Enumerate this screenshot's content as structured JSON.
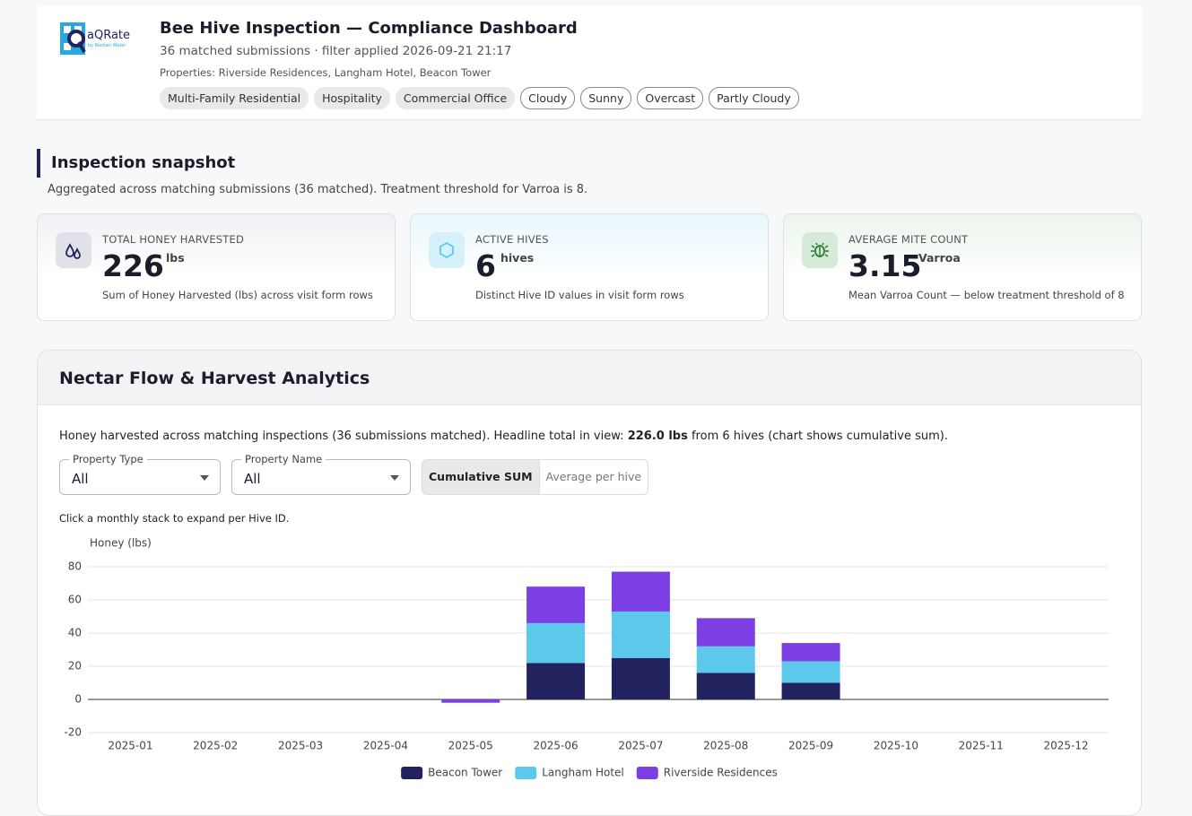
{
  "header": {
    "logo_text": "aQRate",
    "logo_sub": "by Roshan Water",
    "title": "Bee Hive Inspection — Compliance Dashboard",
    "subtitle": "36 matched submissions · filter applied 2026-09-21 21:17",
    "properties": "Properties: Riverside Residences, Langham Hotel, Beacon Tower",
    "type_tags": [
      "Multi-Family Residential",
      "Hospitality",
      "Commercial Office"
    ],
    "weather_tags": [
      "Cloudy",
      "Sunny",
      "Overcast",
      "Partly Cloudy"
    ]
  },
  "snapshot": {
    "title": "Inspection snapshot",
    "description": "Aggregated across matching submissions (36 matched). Treatment threshold for Varroa is 8.",
    "cards": [
      {
        "label": "TOTAL HONEY HARVESTED",
        "value": "226",
        "unit": "lbs",
        "note": "Sum of Honey Harvested (lbs) across visit form rows"
      },
      {
        "label": "ACTIVE HIVES",
        "value": "6",
        "unit": "hives",
        "note": "Distinct Hive ID values in visit form rows"
      },
      {
        "label": "AVERAGE MITE COUNT",
        "value": "3.15",
        "unit": "Varroa",
        "note": "Mean Varroa Count — below treatment threshold of 8"
      }
    ]
  },
  "analytics": {
    "title": "Nectar Flow & Harvest Analytics",
    "desc_before": "Honey harvested across matching inspections (36 submissions matched). Headline total in view: ",
    "desc_bold": "226.0 lbs",
    "desc_after": " from 6 hives (chart shows cumulative sum).",
    "filters": [
      {
        "label": "Property Type",
        "value": "All"
      },
      {
        "label": "Property Name",
        "value": "All"
      }
    ],
    "toggle": [
      "Cumulative SUM",
      "Average per hive"
    ],
    "hint": "Click a monthly stack to expand per Hive ID."
  },
  "chart_data": {
    "type": "stacked-bar",
    "y_label": "Honey (lbs)",
    "categories": [
      "2025-01",
      "2025-02",
      "2025-03",
      "2025-04",
      "2025-05",
      "2025-06",
      "2025-07",
      "2025-08",
      "2025-09",
      "2025-10",
      "2025-11",
      "2025-12"
    ],
    "series": [
      {
        "name": "Beacon Tower",
        "color": "#22235e",
        "values": [
          0,
          0,
          0,
          0,
          0,
          22,
          25,
          16,
          10,
          0,
          0,
          0
        ]
      },
      {
        "name": "Langham Hotel",
        "color": "#5bc8ec",
        "values": [
          0,
          0,
          0,
          0,
          0,
          24,
          28,
          16,
          13,
          0,
          0,
          0
        ]
      },
      {
        "name": "Riverside Residences",
        "color": "#7b3fe4",
        "values": [
          0,
          0,
          0,
          0,
          -2,
          22,
          24,
          17,
          11,
          0,
          0,
          0
        ]
      }
    ],
    "ylim": [
      -20,
      80
    ],
    "yticks": [
      -20,
      0,
      20,
      40,
      60,
      80
    ],
    "grid": true,
    "legend": "bottom"
  }
}
